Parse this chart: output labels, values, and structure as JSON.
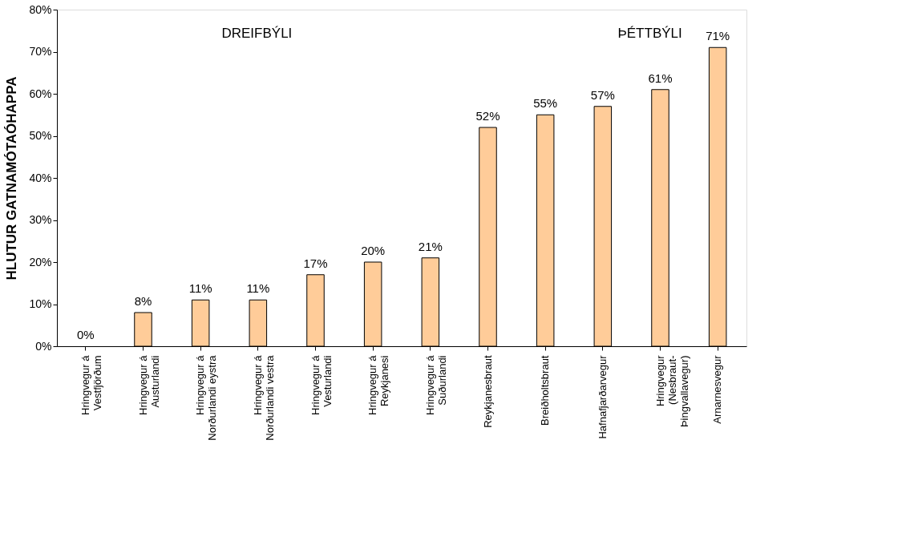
{
  "chart_data": {
    "type": "bar",
    "ylabel": "HLUTUR GATNAMÓTAÓHAPPA",
    "categories": [
      "Hringvegur á\nVestfjörðum",
      "Hringvegur á\nAusturlandi",
      "Hringvegur á\nNorðurlandi eystra",
      "Hringvegur á\nNorðurlandi vestra",
      "Hringvegur á\nVesturlandi",
      "Hringvegur á\nReykjanesi",
      "Hringvegur á\nSuðurlandi",
      "Reykjanesbraut",
      "Breiðholtsbraut",
      "Hafnafjarðarvegur",
      "Hringvegur\n(Nesbraut-\nÞingvallavegur)",
      "Arnarnesvegur"
    ],
    "values": [
      0,
      8,
      11,
      11,
      17,
      20,
      21,
      52,
      55,
      57,
      61,
      71
    ],
    "value_labels": [
      "0%",
      "8%",
      "11%",
      "11%",
      "17%",
      "20%",
      "21%",
      "52%",
      "55%",
      "57%",
      "61%",
      "71%"
    ],
    "color": "#ffcc99",
    "ylim": [
      0,
      80
    ],
    "yticks": [
      {
        "value": 0,
        "label": "0%"
      },
      {
        "value": 10,
        "label": "10%"
      },
      {
        "value": 20,
        "label": "20%"
      },
      {
        "value": 30,
        "label": "30%"
      },
      {
        "value": 40,
        "label": "40%"
      },
      {
        "value": 50,
        "label": "50%"
      },
      {
        "value": 60,
        "label": "60%"
      },
      {
        "value": 70,
        "label": "70%"
      },
      {
        "value": 80,
        "label": "80%"
      }
    ],
    "annotations": [
      "DREIFBÝLI",
      "ÞÉTTBÝLI"
    ],
    "grid": false
  }
}
